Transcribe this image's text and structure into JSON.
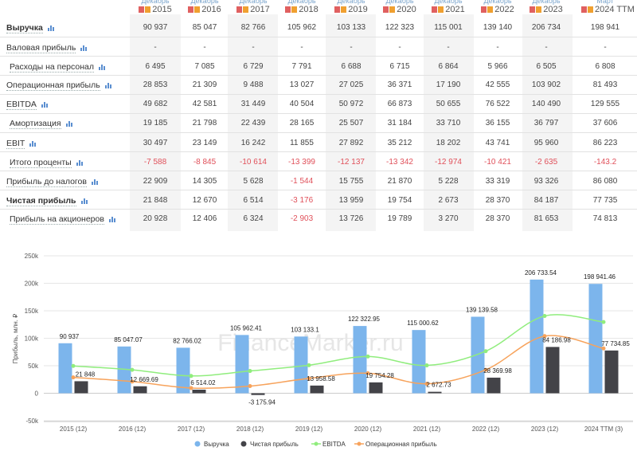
{
  "table": {
    "columns": [
      {
        "period": "Декабрь",
        "year": "2015"
      },
      {
        "period": "Декабрь",
        "year": "2016"
      },
      {
        "period": "Декабрь",
        "year": "2017"
      },
      {
        "period": "Декабрь",
        "year": "2018"
      },
      {
        "period": "Декабрь",
        "year": "2019"
      },
      {
        "period": "Декабрь",
        "year": "2020"
      },
      {
        "period": "Декабрь",
        "year": "2021"
      },
      {
        "period": "Декабрь",
        "year": "2022"
      },
      {
        "period": "Декабрь",
        "year": "2023"
      },
      {
        "period": "Март",
        "year": "2024 TTM"
      }
    ],
    "rows": [
      {
        "label": "Выручка",
        "bold": true,
        "values": [
          "90 937",
          "85 047",
          "82 766",
          "105 962",
          "103 133",
          "122 323",
          "115 001",
          "139 140",
          "206 734",
          "198 941"
        ]
      },
      {
        "label": "Валовая прибыль",
        "bold": false,
        "values": [
          "-",
          "-",
          "-",
          "-",
          "-",
          "-",
          "-",
          "-",
          "-",
          "-"
        ]
      },
      {
        "label": "Расходы на персонал",
        "bold": false,
        "values": [
          "6 495",
          "7 085",
          "6 729",
          "7 791",
          "6 688",
          "6 715",
          "6 864",
          "5 966",
          "6 505",
          "6 808"
        ]
      },
      {
        "label": "Операционная прибыль",
        "bold": false,
        "values": [
          "28 853",
          "21 309",
          "9 488",
          "13 027",
          "27 025",
          "36 371",
          "17 190",
          "42 555",
          "103 902",
          "81 493"
        ]
      },
      {
        "label": "EBITDA",
        "bold": false,
        "values": [
          "49 682",
          "42 581",
          "31 449",
          "40 504",
          "50 972",
          "66 873",
          "50 655",
          "76 522",
          "140 490",
          "129 555"
        ]
      },
      {
        "label": "Амортизация",
        "bold": false,
        "values": [
          "19 185",
          "21 798",
          "22 439",
          "28 165",
          "25 507",
          "31 184",
          "33 710",
          "36 155",
          "36 797",
          "37 606"
        ]
      },
      {
        "label": "EBIT",
        "bold": false,
        "values": [
          "30 497",
          "23 149",
          "16 242",
          "11 855",
          "27 892",
          "35 212",
          "18 202",
          "43 741",
          "95 960",
          "86 223"
        ]
      },
      {
        "label": "Итого проценты",
        "bold": false,
        "values": [
          "-7 588",
          "-8 845",
          "-10 614",
          "-13 399",
          "-12 137",
          "-13 342",
          "-12 974",
          "-10 421",
          "-2 635",
          "-143.2"
        ]
      },
      {
        "label": "Прибыль до налогов",
        "bold": false,
        "values": [
          "22 909",
          "14 305",
          "5 628",
          "-1 544",
          "15 755",
          "21 870",
          "5 228",
          "33 319",
          "93 326",
          "86 080"
        ]
      },
      {
        "label": "Чистая прибыль",
        "bold": true,
        "values": [
          "21 848",
          "12 670",
          "6 514",
          "-3 176",
          "13 959",
          "19 754",
          "2 673",
          "28 370",
          "84 187",
          "77 735"
        ]
      },
      {
        "label": "Прибыль на акционеров",
        "bold": false,
        "values": [
          "20 928",
          "12 406",
          "6 324",
          "-2 903",
          "13 726",
          "19 789",
          "3 270",
          "28 370",
          "81 653",
          "74 813"
        ]
      }
    ]
  },
  "chart_data": {
    "type": "bar",
    "categories": [
      "2015 (12)",
      "2016 (12)",
      "2017 (12)",
      "2018 (12)",
      "2019 (12)",
      "2020 (12)",
      "2021 (12)",
      "2022 (12)",
      "2023 (12)",
      "2024 TTM (3)"
    ],
    "ylabel": "Прибыль, млн. ₽",
    "ylim": [
      -50000,
      250000
    ],
    "yticks": [
      -50000,
      0,
      50000,
      100000,
      150000,
      200000,
      250000
    ],
    "ytick_labels": [
      "-50k",
      "0",
      "50k",
      "100k",
      "150k",
      "200k",
      "250k"
    ],
    "watermark": "FinanceMarker.ru",
    "legend_position": "bottom",
    "series": [
      {
        "name": "Выручка",
        "kind": "bar",
        "color": "#7cb5ec",
        "values": [
          90937,
          85047.07,
          82766.02,
          105962.41,
          103133.1,
          122322.95,
          115000.62,
          139139.58,
          206733.54,
          198941.46
        ],
        "labels": [
          "90 937",
          "85 047.07",
          "82 766.02",
          "105 962.41",
          "103 133.1",
          "122 322.95",
          "115 000.62",
          "139 139.58",
          "206 733.54",
          "198 941.46"
        ]
      },
      {
        "name": "Чистая прибыль",
        "kind": "bar",
        "color": "#434348",
        "values": [
          21848,
          12669.69,
          6514.02,
          -3175.94,
          13958.58,
          19754.28,
          2672.73,
          28369.98,
          84186.98,
          77734.85
        ],
        "labels": [
          "21 848",
          "12 669.69",
          "6 514.02",
          "-3 175.94",
          "13 958.58",
          "19 754.28",
          "2 672.73",
          "28 369.98",
          "84 186.98",
          "77 734.85"
        ]
      },
      {
        "name": "EBITDA",
        "kind": "line",
        "color": "#90ed7d",
        "values": [
          49682,
          42581,
          31449,
          40504,
          50972,
          66873,
          50655,
          76522,
          140490,
          129555
        ]
      },
      {
        "name": "Операционная прибыль",
        "kind": "line",
        "color": "#f7a35c",
        "values": [
          28853,
          21309,
          9488,
          13027,
          27025,
          36371,
          17190,
          42555,
          103902,
          81493
        ]
      }
    ]
  }
}
